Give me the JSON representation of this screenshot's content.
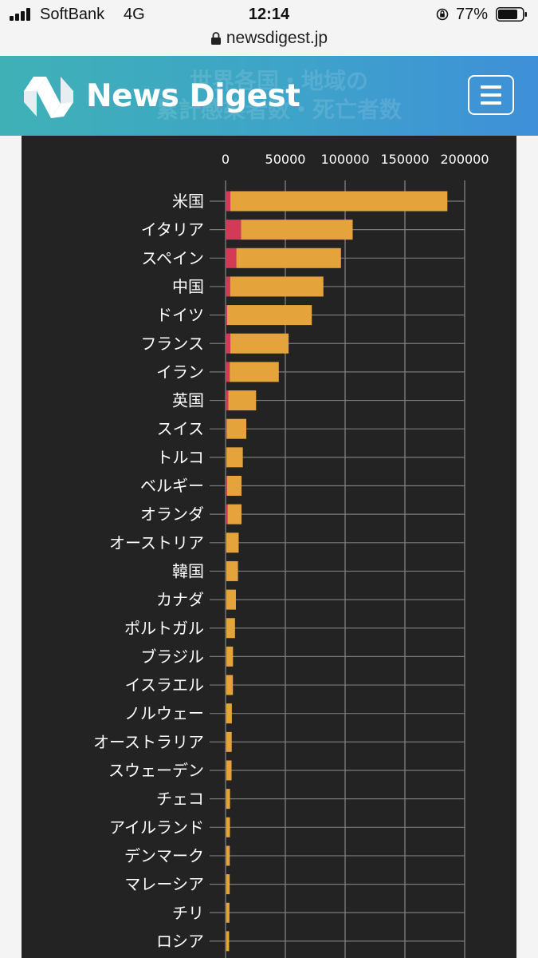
{
  "status_bar": {
    "carrier": "SoftBank",
    "network": "4G",
    "time": "12:14",
    "battery": "77%",
    "icons": [
      "signal-icon",
      "rotation-lock-icon",
      "battery-icon"
    ]
  },
  "browser": {
    "url": "newsdigest.jp",
    "icons": [
      "padlock-icon"
    ]
  },
  "header": {
    "brand": "News Digest",
    "ghost_title_line1": "世界各国・地域の",
    "ghost_title_line2": "累計感染者数・死亡者数",
    "icons": [
      "logo-icon",
      "hamburger-menu-icon"
    ]
  },
  "colors": {
    "confirmed": "#e4a43b",
    "deaths": "#d33a57",
    "chart_background": "#232323",
    "grid": "#7a7a7a",
    "header_start": "#3fb1b6",
    "header_end": "#3e8fd8"
  },
  "chart_data": {
    "type": "bar",
    "orientation": "horizontal",
    "stacked": true,
    "title": "",
    "xlabel": "",
    "ylabel": "",
    "xlim": [
      0,
      200000
    ],
    "x_ticks": [
      "0",
      "50000",
      "100000",
      "150000",
      "200000"
    ],
    "x_axis_position": "top",
    "grid": true,
    "categories": [
      "米国",
      "イタリア",
      "スペイン",
      "中国",
      "ドイツ",
      "フランス",
      "イラン",
      "英国",
      "スイス",
      "トルコ",
      "ベルギー",
      "オランダ",
      "オーストリア",
      "韓国",
      "カナダ",
      "ポルトガル",
      "ブラジル",
      "イスラエル",
      "ノルウェー",
      "オーストラリア",
      "スウェーデン",
      "チェコ",
      "アイルランド",
      "デンマーク",
      "マレーシア",
      "チリ",
      "ロシア"
    ],
    "series": [
      {
        "values": [
          3500,
          12400,
          8500,
          3300,
          800,
          3500,
          2900,
          1800,
          400,
          300,
          700,
          1200,
          150,
          165,
          110,
          160,
          200,
          20,
          30,
          20,
          180,
          10,
          40,
          90,
          20,
          10,
          20
        ]
      },
      {
        "values": [
          181500,
          93400,
          87500,
          78000,
          70800,
          48700,
          41100,
          23200,
          16400,
          13600,
          12100,
          11600,
          10300,
          9700,
          8000,
          7200,
          5500,
          5600,
          4700,
          4600,
          4300,
          3200,
          3100,
          2900,
          2900,
          2700,
          2400
        ]
      }
    ]
  }
}
